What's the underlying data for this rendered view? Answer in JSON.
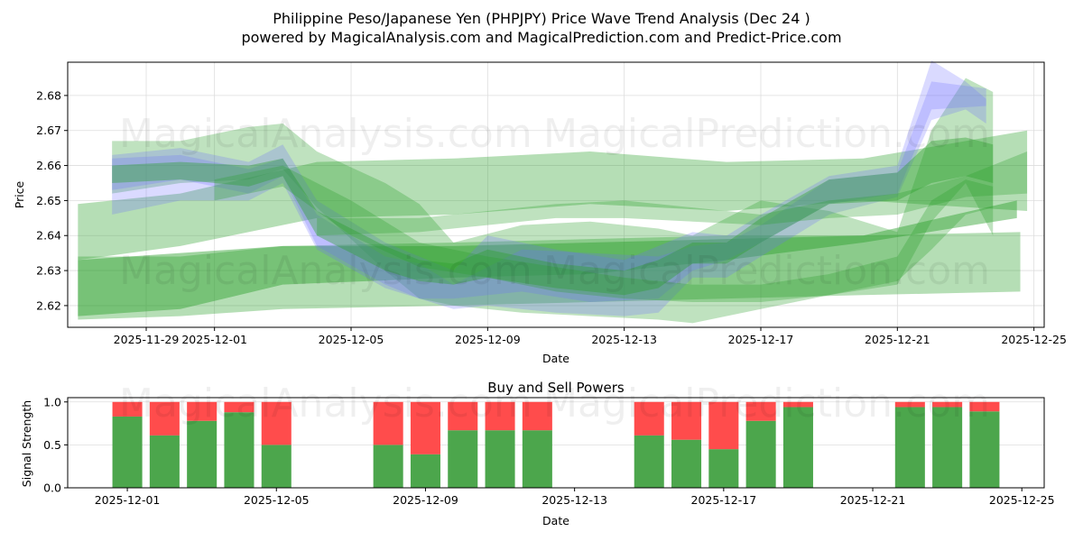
{
  "title_line1": "Philippine Peso/Japanese Yen (PHPJPY) Price Wave Trend Analysis (Dec 24 )",
  "title_line2": "powered by MagicalAnalysis.com and MagicalPrediction.com and Predict-Price.com",
  "watermarks": [
    "MagicalAnalysis.com",
    "MagicalPrediction.com"
  ],
  "colors": {
    "band_green": "#2ca02c",
    "band_blue": "#6b6bff",
    "buy": "#4ca64c",
    "sell": "#ff4c4c"
  },
  "chart_data": [
    {
      "type": "area",
      "title": "",
      "xlabel": "Date",
      "ylabel": "Price",
      "x_origin_date": "2025-11-29",
      "xlim_days": [
        -2.3,
        26.3
      ],
      "ylim": [
        2.6138,
        2.6895
      ],
      "yticks": [
        "2.62",
        "2.63",
        "2.64",
        "2.65",
        "2.66",
        "2.67",
        "2.68"
      ],
      "ytick_values": [
        2.62,
        2.63,
        2.64,
        2.65,
        2.66,
        2.67,
        2.68
      ],
      "xticks": [
        "2025-11-29",
        "2025-12-01",
        "2025-12-05",
        "2025-12-09",
        "2025-12-13",
        "2025-12-17",
        "2025-12-21",
        "2025-12-25"
      ],
      "xtick_days": [
        0,
        2,
        6,
        10,
        14,
        18,
        22,
        26
      ],
      "grid": true,
      "bands": [
        {
          "color": "green",
          "opacity": 0.35,
          "x": [
            -2,
            1,
            5,
            9,
            13,
            17,
            21,
            25.8
          ],
          "upper": [
            2.649,
            2.652,
            2.661,
            2.662,
            2.664,
            2.661,
            2.662,
            2.67
          ],
          "lower": [
            2.633,
            2.637,
            2.645,
            2.646,
            2.649,
            2.647,
            2.65,
            2.647
          ]
        },
        {
          "color": "green",
          "opacity": 0.35,
          "x": [
            -2,
            1,
            4,
            9,
            13,
            17,
            21,
            25.6
          ],
          "upper": [
            2.634,
            2.634,
            2.637,
            2.638,
            2.639,
            2.64,
            2.64,
            2.641
          ],
          "lower": [
            2.616,
            2.617,
            2.619,
            2.62,
            2.621,
            2.622,
            2.623,
            2.624
          ]
        },
        {
          "color": "green",
          "opacity": 0.45,
          "x": [
            -2,
            1,
            4,
            9,
            13,
            17,
            21,
            25.5
          ],
          "upper": [
            2.633,
            2.635,
            2.637,
            2.637,
            2.638,
            2.639,
            2.64,
            2.65
          ],
          "lower": [
            2.617,
            2.619,
            2.626,
            2.628,
            2.629,
            2.633,
            2.638,
            2.645
          ]
        },
        {
          "color": "green",
          "opacity": 0.3,
          "x": [
            -1,
            1,
            3,
            4,
            5,
            7,
            8,
            9,
            11,
            13,
            15,
            16,
            18,
            20,
            22,
            23,
            24,
            24.8
          ],
          "upper": [
            2.667,
            2.667,
            2.671,
            2.672,
            2.664,
            2.655,
            2.649,
            2.638,
            2.643,
            2.644,
            2.642,
            2.64,
            2.65,
            2.647,
            2.641,
            2.67,
            2.685,
            2.681
          ],
          "lower": [
            2.652,
            2.655,
            2.656,
            2.659,
            2.648,
            2.63,
            2.622,
            2.62,
            2.618,
            2.617,
            2.616,
            2.615,
            2.619,
            2.623,
            2.626,
            2.644,
            2.655,
            2.64
          ]
        },
        {
          "color": "blue",
          "opacity": 0.25,
          "x": [
            -1,
            1,
            3,
            4,
            5,
            7,
            8,
            9,
            10,
            12,
            14,
            15,
            16,
            17,
            18,
            20,
            22,
            23,
            24,
            24.6
          ],
          "upper": [
            2.663,
            2.665,
            2.661,
            2.666,
            2.65,
            2.638,
            2.634,
            2.63,
            2.64,
            2.636,
            2.633,
            2.637,
            2.641,
            2.64,
            2.646,
            2.657,
            2.66,
            2.69,
            2.684,
            2.679
          ],
          "lower": [
            2.653,
            2.656,
            2.652,
            2.657,
            2.637,
            2.626,
            2.622,
            2.619,
            2.62,
            2.618,
            2.617,
            2.618,
            2.628,
            2.628,
            2.634,
            2.646,
            2.651,
            2.673,
            2.676,
            2.672
          ]
        },
        {
          "color": "blue",
          "opacity": 0.25,
          "x": [
            -1,
            1,
            3,
            4,
            5,
            7,
            8,
            9,
            11,
            13,
            15,
            16,
            17,
            18,
            20,
            22,
            23,
            24.6
          ],
          "upper": [
            2.662,
            2.663,
            2.659,
            2.662,
            2.646,
            2.634,
            2.632,
            2.626,
            2.636,
            2.635,
            2.634,
            2.637,
            2.638,
            2.643,
            2.656,
            2.658,
            2.684,
            2.682
          ],
          "lower": [
            2.646,
            2.65,
            2.65,
            2.655,
            2.636,
            2.625,
            2.622,
            2.622,
            2.624,
            2.621,
            2.622,
            2.63,
            2.633,
            2.638,
            2.649,
            2.652,
            2.676,
            2.677
          ]
        },
        {
          "color": "green",
          "opacity": 0.4,
          "x": [
            -1,
            1,
            3,
            4,
            5,
            7,
            8,
            9,
            10,
            12,
            14,
            15,
            16,
            17,
            18,
            20,
            22,
            23,
            24,
            24.8
          ],
          "upper": [
            2.66,
            2.661,
            2.66,
            2.662,
            2.647,
            2.637,
            2.633,
            2.632,
            2.636,
            2.632,
            2.63,
            2.633,
            2.638,
            2.638,
            2.645,
            2.656,
            2.658,
            2.667,
            2.668,
            2.666
          ],
          "lower": [
            2.655,
            2.656,
            2.654,
            2.657,
            2.64,
            2.63,
            2.627,
            2.626,
            2.628,
            2.625,
            2.623,
            2.625,
            2.632,
            2.632,
            2.638,
            2.649,
            2.65,
            2.655,
            2.657,
            2.655
          ]
        },
        {
          "color": "green",
          "opacity": 0.3,
          "x": [
            2,
            4,
            6,
            8,
            10,
            12,
            14,
            16,
            18,
            20,
            22,
            23,
            24,
            24.8
          ],
          "upper": [
            2.656,
            2.66,
            2.65,
            2.638,
            2.634,
            2.631,
            2.628,
            2.626,
            2.626,
            2.629,
            2.634,
            2.65,
            2.656,
            2.654
          ],
          "lower": [
            2.65,
            2.654,
            2.64,
            2.631,
            2.628,
            2.624,
            2.622,
            2.621,
            2.621,
            2.623,
            2.627,
            2.636,
            2.646,
            2.648
          ]
        },
        {
          "color": "green",
          "opacity": 0.3,
          "x": [
            5,
            8,
            10,
            12,
            14,
            16,
            18,
            20,
            22,
            24,
            25.8
          ],
          "upper": [
            2.645,
            2.645,
            2.647,
            2.649,
            2.65,
            2.648,
            2.646,
            2.65,
            2.652,
            2.657,
            2.664
          ],
          "lower": [
            2.64,
            2.641,
            2.643,
            2.645,
            2.645,
            2.644,
            2.643,
            2.645,
            2.646,
            2.651,
            2.652
          ]
        }
      ]
    },
    {
      "type": "bar",
      "title": "Buy and Sell Powers",
      "xlabel": "Date",
      "ylabel": "Signal Strength",
      "ylim": [
        0,
        1.05
      ],
      "yticks": [
        "0.0",
        "0.5",
        "1.0"
      ],
      "ytick_values": [
        0,
        0.5,
        1.0
      ],
      "xticks": [
        "2025-12-01",
        "2025-12-05",
        "2025-12-09",
        "2025-12-13",
        "2025-12-17",
        "2025-12-21",
        "2025-12-25"
      ],
      "xtick_days": [
        0,
        4,
        8,
        12,
        16,
        20,
        24
      ],
      "x_origin_date": "2025-12-01",
      "xlim_days": [
        -1.6,
        24.6
      ],
      "grid": true,
      "bar_days": [
        0,
        1,
        2,
        3,
        4,
        7,
        8,
        9,
        10,
        11,
        14,
        15,
        16,
        17,
        18,
        21,
        22,
        23
      ],
      "categories": [
        "2025-12-01",
        "2025-12-02",
        "2025-12-03",
        "2025-12-04",
        "2025-12-05",
        "2025-12-08",
        "2025-12-09",
        "2025-12-10",
        "2025-12-11",
        "2025-12-12",
        "2025-12-15",
        "2025-12-16",
        "2025-12-17",
        "2025-12-18",
        "2025-12-19",
        "2025-12-22",
        "2025-12-23",
        "2025-12-24"
      ],
      "series": [
        {
          "name": "Buy",
          "values": [
            0.83,
            0.61,
            0.78,
            0.88,
            0.5,
            0.5,
            0.39,
            0.67,
            0.67,
            0.67,
            0.61,
            0.56,
            0.45,
            0.78,
            0.94,
            0.94,
            0.94,
            0.89
          ]
        },
        {
          "name": "Sell",
          "values": [
            0.17,
            0.39,
            0.22,
            0.12,
            0.5,
            0.5,
            0.61,
            0.33,
            0.33,
            0.33,
            0.39,
            0.44,
            0.55,
            0.22,
            0.06,
            0.06,
            0.06,
            0.11
          ]
        }
      ]
    }
  ]
}
